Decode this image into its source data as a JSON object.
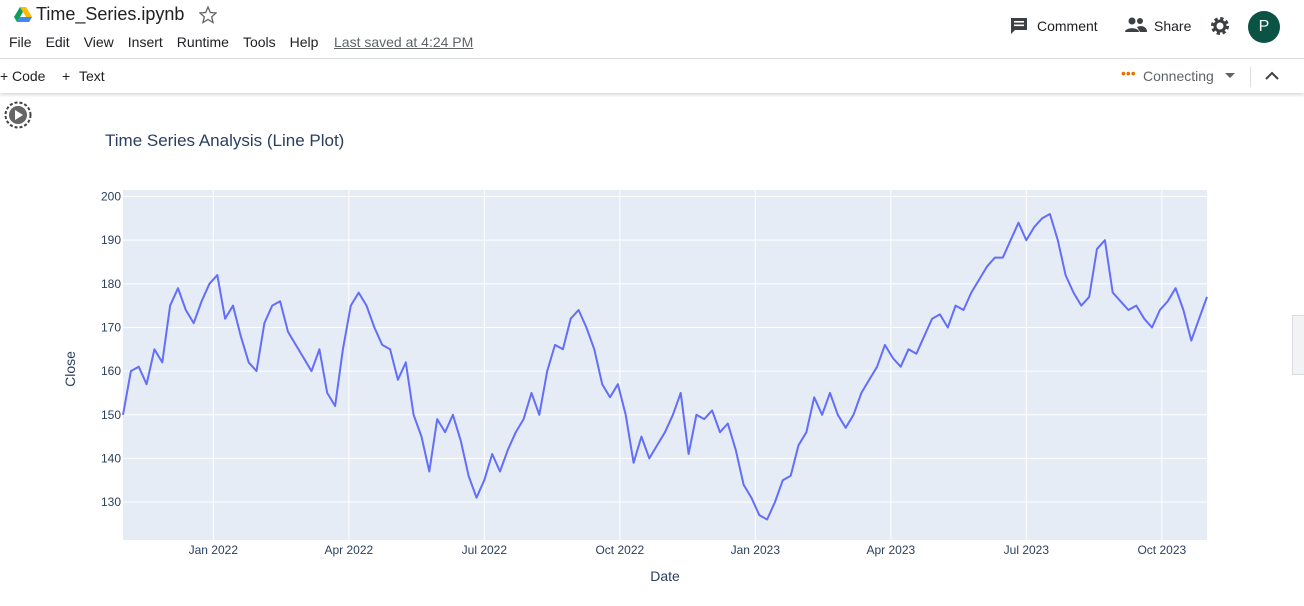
{
  "header": {
    "filename": "Time_Series.ipynb",
    "menu": [
      "File",
      "Edit",
      "View",
      "Insert",
      "Runtime",
      "Tools",
      "Help"
    ],
    "saved": "Last saved at 4:24 PM",
    "comment": "Comment",
    "share": "Share",
    "avatar": "P"
  },
  "toolbar": {
    "code": "Code",
    "text": "Text",
    "status": "Connecting"
  },
  "chart_data": {
    "type": "line",
    "title": "Time Series Analysis (Line Plot)",
    "x_label": "Date",
    "y_label": "Close",
    "series": [
      {
        "name": "Close",
        "color": "#636efa",
        "values": [
          150,
          160,
          161,
          157,
          165,
          162,
          175,
          179,
          174,
          171,
          176,
          180,
          182,
          172,
          175,
          168,
          162,
          160,
          171,
          175,
          176,
          169,
          166,
          163,
          160,
          165,
          155,
          152,
          165,
          175,
          178,
          175,
          170,
          166,
          165,
          158,
          162,
          150,
          145,
          137,
          149,
          146,
          150,
          144,
          136,
          131,
          135,
          141,
          137,
          142,
          146,
          149,
          155,
          150,
          160,
          166,
          165,
          172,
          174,
          170,
          165,
          157,
          154,
          157,
          150,
          139,
          145,
          140,
          143,
          146,
          150,
          155,
          141,
          150,
          149,
          151,
          146,
          148,
          142,
          134,
          131,
          127,
          126,
          130,
          135,
          136,
          143,
          146,
          154,
          150,
          155,
          150,
          147,
          150,
          155,
          158,
          161,
          166,
          163,
          161,
          165,
          164,
          168,
          172,
          173,
          170,
          175,
          174,
          178,
          181,
          184,
          186,
          186,
          190,
          194,
          190,
          193,
          195,
          196,
          190,
          182,
          178,
          175,
          177,
          188,
          190,
          178,
          176,
          174,
          175,
          172,
          170,
          174,
          176,
          179,
          174,
          167,
          172,
          177
        ]
      }
    ],
    "xlim": [
      "2021-11",
      "2023-11"
    ],
    "xticks": [
      {
        "value": "2022-01",
        "label": "Jan 2022"
      },
      {
        "value": "2022-04",
        "label": "Apr 2022"
      },
      {
        "value": "2022-07",
        "label": "Jul 2022"
      },
      {
        "value": "2022-10",
        "label": "Oct 2022"
      },
      {
        "value": "2023-01",
        "label": "Jan 2023"
      },
      {
        "value": "2023-04",
        "label": "Apr 2023"
      },
      {
        "value": "2023-07",
        "label": "Jul 2023"
      },
      {
        "value": "2023-10",
        "label": "Oct 2023"
      }
    ],
    "ylim": [
      121.3,
      201.5
    ],
    "yticks": [
      130,
      140,
      150,
      160,
      170,
      180,
      190,
      200
    ],
    "grid": true
  }
}
